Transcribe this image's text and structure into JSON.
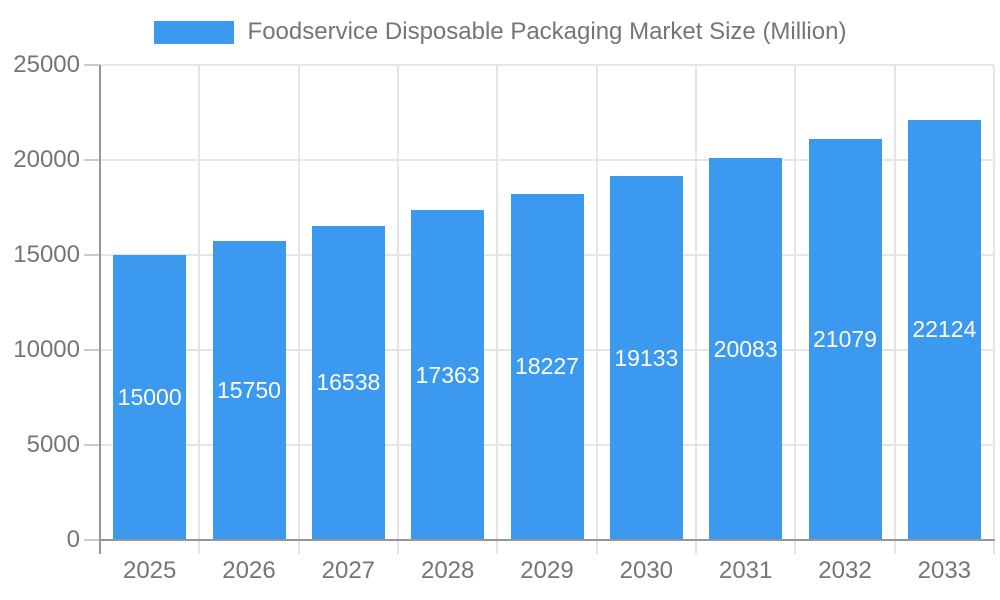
{
  "chart_data": {
    "type": "bar",
    "title": "Foodservice Disposable Packaging Market Size (Million)",
    "categories": [
      "2025",
      "2026",
      "2027",
      "2028",
      "2029",
      "2030",
      "2031",
      "2032",
      "2033"
    ],
    "values": [
      15000,
      15750,
      16538,
      17363,
      18227,
      19133,
      20083,
      21079,
      22124
    ],
    "xlabel": "",
    "ylabel": "",
    "ylim": [
      0,
      25000
    ],
    "yticks": [
      0,
      5000,
      10000,
      15000,
      20000,
      25000
    ],
    "grid": true,
    "legend_position": "top-center",
    "value_labels": "inside-center"
  },
  "colors": {
    "bar": "#3B99F0",
    "bar_value_label": "#FFFFFF",
    "gridline": "#E5E5E5",
    "tick": "#CBCBCB",
    "axis_line": "#969696",
    "axis_text": "#757575",
    "background": "#FFFFFF"
  }
}
